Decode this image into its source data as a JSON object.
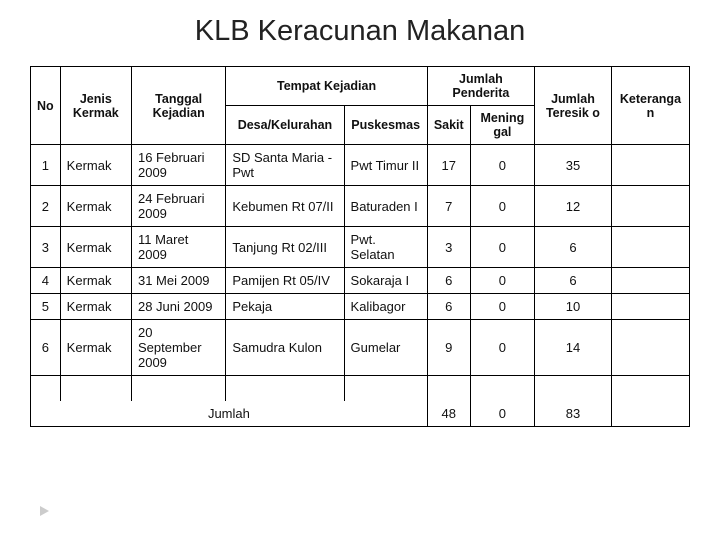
{
  "title": "KLB Keracunan Makanan",
  "headers": {
    "no": "No",
    "jenis": "Jenis Kermak",
    "tanggal": "Tanggal Kejadian",
    "tempat": "Tempat Kejadian",
    "desa": "Desa/Kelurahan",
    "puskesmas": "Puskesmas",
    "jumlahPenderita": "Jumlah Penderita",
    "sakit": "Sakit",
    "meninggal": "Mening gal",
    "jumlahTeresiko": "Jumlah Teresik o",
    "keterangan": "Keteranga n"
  },
  "rows": [
    {
      "no": "1",
      "jenis": "Kermak",
      "tanggal": "16 Februari 2009",
      "desa": "SD Santa Maria - Pwt",
      "puskesmas": "Pwt Timur II",
      "sakit": "17",
      "meninggal": "0",
      "teresiko": "35",
      "ket": ""
    },
    {
      "no": "2",
      "jenis": "Kermak",
      "tanggal": "24 Februari 2009",
      "desa": "Kebumen Rt 07/II",
      "puskesmas": "Baturaden I",
      "sakit": "7",
      "meninggal": "0",
      "teresiko": "12",
      "ket": ""
    },
    {
      "no": "3",
      "jenis": "Kermak",
      "tanggal": "11 Maret 2009",
      "desa": "Tanjung Rt 02/III",
      "puskesmas": "Pwt. Selatan",
      "sakit": "3",
      "meninggal": "0",
      "teresiko": "6",
      "ket": ""
    },
    {
      "no": "4",
      "jenis": "Kermak",
      "tanggal": "31 Mei 2009",
      "desa": "Pamijen Rt 05/IV",
      "puskesmas": "Sokaraja I",
      "sakit": "6",
      "meninggal": "0",
      "teresiko": "6",
      "ket": ""
    },
    {
      "no": "5",
      "jenis": "Kermak",
      "tanggal": "28 Juni 2009",
      "desa": "Pekaja",
      "puskesmas": "Kalibagor",
      "sakit": "6",
      "meninggal": "0",
      "teresiko": "10",
      "ket": ""
    },
    {
      "no": "6",
      "jenis": "Kermak",
      "tanggal": "20 September 2009",
      "desa": "Samudra Kulon",
      "puskesmas": "Gumelar",
      "sakit": "9",
      "meninggal": "0",
      "teresiko": "14",
      "ket": ""
    }
  ],
  "totals": {
    "label": "Jumlah",
    "sakit": "48",
    "meninggal": "0",
    "teresiko": "83",
    "ket": ""
  },
  "style": {
    "title_fontsize": 29,
    "body_fontsize": 13,
    "border_color": "#000000",
    "background": "#ffffff"
  }
}
